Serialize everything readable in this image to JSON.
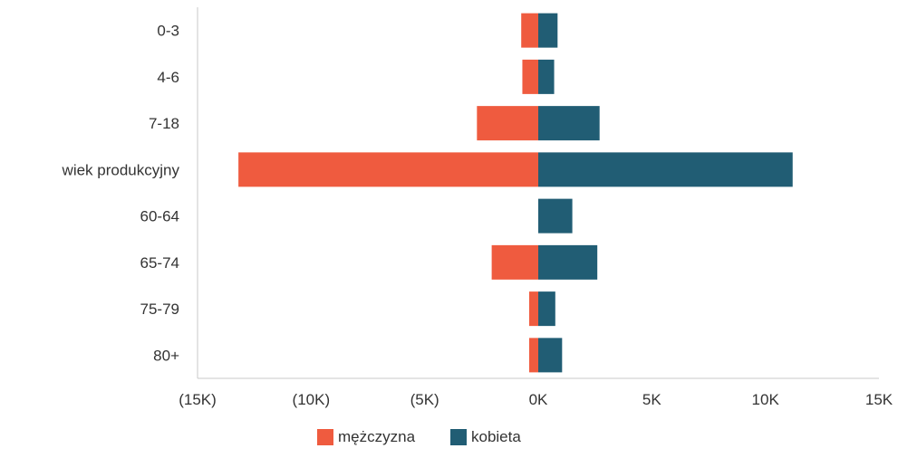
{
  "chart_data": {
    "type": "bar",
    "orientation": "horizontal",
    "stacking": "diverging",
    "categories": [
      "0-3",
      "4-6",
      "7-18",
      "wiek produkcyjny",
      "60-64",
      "65-74",
      "75-79",
      "80+"
    ],
    "series": [
      {
        "name": "mężczyzna",
        "color": "#ef5b3f",
        "values": [
          -750,
          -700,
          -2700,
          -13200,
          0,
          -2050,
          -400,
          -400
        ]
      },
      {
        "name": "kobieta",
        "color": "#215d74",
        "values": [
          850,
          700,
          2700,
          11200,
          1500,
          2600,
          750,
          1050
        ]
      }
    ],
    "xlim": [
      -15000,
      15000
    ],
    "x_ticks": [
      -15000,
      -10000,
      -5000,
      0,
      5000,
      10000,
      15000
    ],
    "x_tick_labels": [
      "(15K)",
      "(10K)",
      "(5K)",
      "0K",
      "5K",
      "10K",
      "15K"
    ],
    "title": "",
    "xlabel": "",
    "ylabel": "",
    "grid": false,
    "legend_position": "bottom-center"
  }
}
